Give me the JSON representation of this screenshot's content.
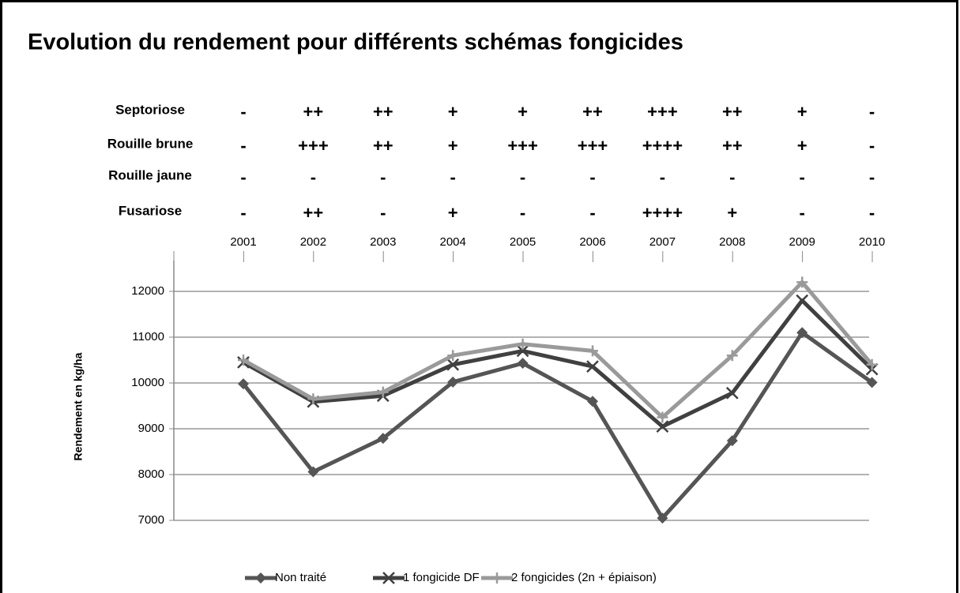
{
  "chart_data": {
    "type": "line",
    "title": "Evolution du rendement pour différents schémas fongicides",
    "y_label": "Rendement en kg/ha",
    "disease_table": [
      {
        "label": "Septoriose",
        "values": [
          "-",
          "++",
          "++",
          "+",
          "+",
          "++",
          "+++",
          "++",
          "+",
          "-"
        ]
      },
      {
        "label": "Rouille brune",
        "values": [
          "-",
          "+++",
          "++",
          "+",
          "+++",
          "+++",
          "++++",
          "++",
          "+",
          "-"
        ]
      },
      {
        "label": "Rouille jaune",
        "values": [
          "-",
          "-",
          "-",
          "-",
          "-",
          "-",
          "-",
          "-",
          "-",
          "-"
        ]
      },
      {
        "label": "Fusariose",
        "values": [
          "-",
          "++",
          "-",
          "+",
          "-",
          "-",
          "++++",
          "+",
          "-",
          "-"
        ]
      }
    ],
    "categories": [
      "2001",
      "2002",
      "2003",
      "2004",
      "2005",
      "2006",
      "2007",
      "2008",
      "2009",
      "2010"
    ],
    "series": [
      {
        "name": "Non traité",
        "color": "#555555",
        "marker": "diamond",
        "values": [
          9980,
          8060,
          8790,
          10020,
          10430,
          9600,
          7050,
          8740,
          11100,
          10010
        ]
      },
      {
        "name": "1 fongicide DF",
        "color": "#404040",
        "marker": "x",
        "values": [
          10450,
          9590,
          9720,
          10400,
          10700,
          10360,
          9050,
          9780,
          11800,
          10300
        ]
      },
      {
        "name": "2 fongicides (2n + épiaison)",
        "color": "#9a9a9a",
        "marker": "plus",
        "values": [
          10500,
          9650,
          9800,
          10600,
          10850,
          10700,
          9250,
          10600,
          12200,
          10400
        ]
      }
    ],
    "ylim": [
      7000,
      12500
    ],
    "yticks": [
      7000,
      8000,
      9000,
      10000,
      11000,
      12000
    ],
    "grid": true
  }
}
